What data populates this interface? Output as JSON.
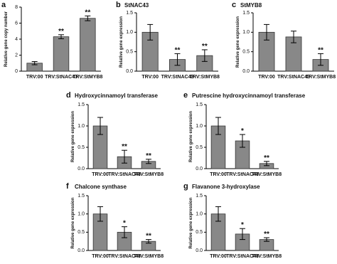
{
  "chart_data": [
    {
      "type": "bar",
      "panel": "a",
      "ylabel": "Relative gene copy number",
      "categories": [
        "TRV:00",
        "TRV:StNAC43",
        "TRV:StMYB8"
      ],
      "values": [
        1.0,
        4.3,
        6.6
      ],
      "errors": [
        0.2,
        0.25,
        0.3
      ],
      "significance": [
        null,
        "**",
        "**"
      ],
      "ylim": [
        0,
        8
      ],
      "yticks": [
        0,
        2,
        4,
        6,
        8
      ],
      "color": "#888888"
    },
    {
      "type": "bar",
      "panel": "b",
      "title": "StNAC43",
      "ylabel": "Relative gene expression",
      "categories": [
        "TRV:00",
        "TRV:StNAC43",
        "TRV:StMYB8"
      ],
      "values": [
        1.0,
        0.3,
        0.4
      ],
      "errors": [
        0.2,
        0.15,
        0.15
      ],
      "significance": [
        null,
        "**",
        "**"
      ],
      "ylim": [
        0,
        1.5
      ],
      "yticks": [
        {
          "value": 0,
          "label": "0.0"
        },
        {
          "value": 0.5,
          "label": "0.5"
        },
        {
          "value": 1,
          "label": "1.0"
        },
        {
          "value": 1.5,
          "label": "1.5"
        }
      ],
      "color": "#888888"
    },
    {
      "type": "bar",
      "panel": "c",
      "title": "StMYB8",
      "ylabel": "Relative gene expression",
      "categories": [
        "TRV:00",
        "TRV:StNAC43",
        "TRV:StMYB8"
      ],
      "values": [
        1.0,
        0.88,
        0.3
      ],
      "errors": [
        0.2,
        0.15,
        0.15
      ],
      "significance": [
        null,
        null,
        "**"
      ],
      "ylim": [
        0,
        1.5
      ],
      "yticks": [
        {
          "value": 0,
          "label": "0.0"
        },
        {
          "value": 0.5,
          "label": "0.5"
        },
        {
          "value": 1,
          "label": "1.0"
        },
        {
          "value": 1.5,
          "label": "1.5"
        }
      ],
      "color": "#888888"
    },
    {
      "type": "bar",
      "panel": "d",
      "title": "Hydroxycinnamoyl transferase",
      "ylabel": "Relative gene expression",
      "categories": [
        "TRV:00",
        "TRV:StNAC43",
        "TRV:StMYB8"
      ],
      "values": [
        1.0,
        0.28,
        0.17
      ],
      "errors": [
        0.2,
        0.15,
        0.05
      ],
      "significance": [
        null,
        "**",
        "**"
      ],
      "ylim": [
        0,
        1.5
      ],
      "yticks": [
        {
          "value": 0,
          "label": "0.0"
        },
        {
          "value": 0.5,
          "label": "0.5"
        },
        {
          "value": 1,
          "label": "1.0"
        },
        {
          "value": 1.5,
          "label": "1.5"
        }
      ],
      "color": "#888888"
    },
    {
      "type": "bar",
      "panel": "e",
      "title": "Putrescine hydroxycinnamoyl  transferase",
      "ylabel": "Relative gene expression",
      "categories": [
        "TRV:00",
        "TRV:StNAC43",
        "TRV:StMYB8"
      ],
      "values": [
        1.0,
        0.65,
        0.12
      ],
      "errors": [
        0.2,
        0.15,
        0.05
      ],
      "significance": [
        null,
        "*",
        "**"
      ],
      "ylim": [
        0,
        1.5
      ],
      "yticks": [
        {
          "value": 0,
          "label": "0.0"
        },
        {
          "value": 0.5,
          "label": "0.5"
        },
        {
          "value": 1,
          "label": "1.0"
        },
        {
          "value": 1.5,
          "label": "1.5"
        }
      ],
      "color": "#888888"
    },
    {
      "type": "bar",
      "panel": "f",
      "title": "Chalcone synthase",
      "ylabel": "Relative gene expression",
      "categories": [
        "TRV:00",
        "TRV:StNAC43",
        "TRV:StMYB8"
      ],
      "values": [
        1.0,
        0.5,
        0.25
      ],
      "errors": [
        0.2,
        0.15,
        0.05
      ],
      "significance": [
        null,
        "*",
        "**"
      ],
      "ylim": [
        0,
        1.5
      ],
      "yticks": [
        {
          "value": 0,
          "label": "0.0"
        },
        {
          "value": 0.5,
          "label": "0.5"
        },
        {
          "value": 1,
          "label": "1.0"
        },
        {
          "value": 1.5,
          "label": "1.5"
        }
      ],
      "color": "#888888"
    },
    {
      "type": "bar",
      "panel": "g",
      "title": "Flavanone 3-hydroxylase",
      "ylabel": "Relative gene expression",
      "categories": [
        "TRV:00",
        "TRV:StNAC43",
        "TRV:StMYB8"
      ],
      "values": [
        1.0,
        0.45,
        0.3
      ],
      "errors": [
        0.2,
        0.15,
        0.05
      ],
      "significance": [
        null,
        "*",
        "**"
      ],
      "ylim": [
        0,
        1.5
      ],
      "yticks": [
        {
          "value": 0,
          "label": "0.0"
        },
        {
          "value": 0.5,
          "label": "0.5"
        },
        {
          "value": 1,
          "label": "1.0"
        },
        {
          "value": 1.5,
          "label": "1.5"
        }
      ],
      "color": "#888888"
    }
  ]
}
